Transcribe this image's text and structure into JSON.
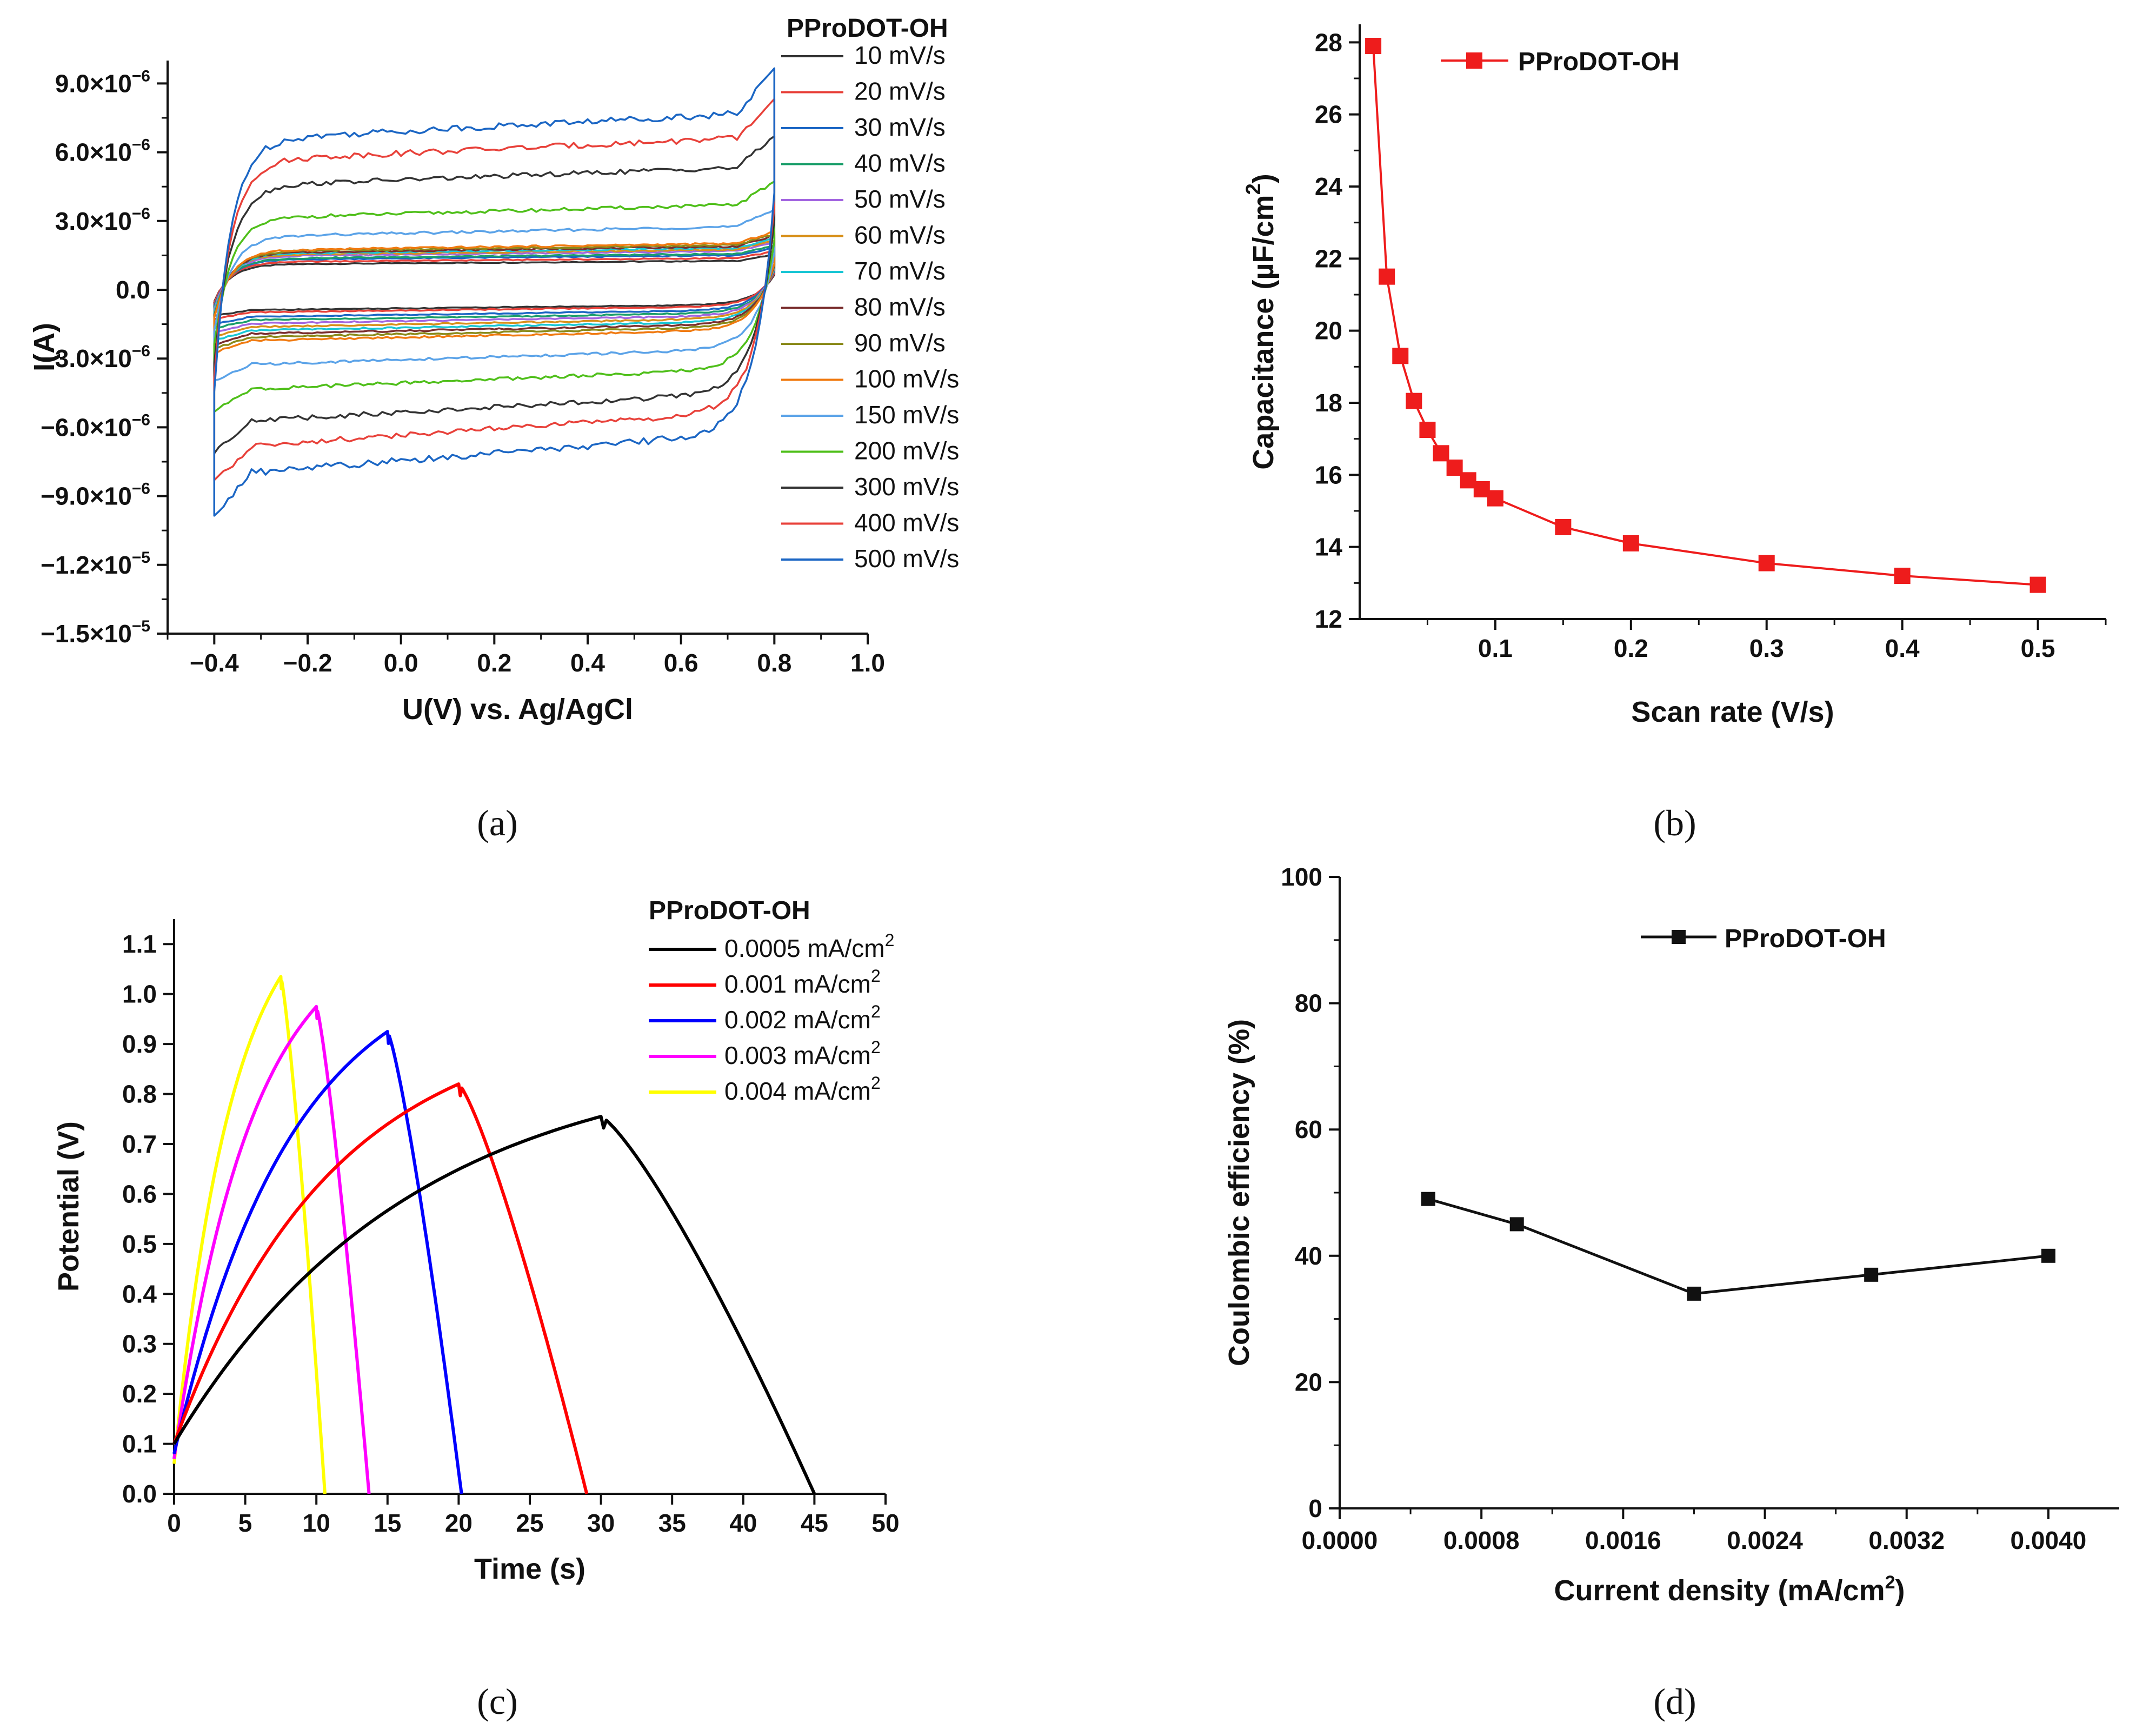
{
  "chart_data": [
    {
      "panel": "(a)",
      "type": "line",
      "xlabel": "U(V) vs. Ag/AgCl",
      "ylabel": "I(A)",
      "xlim": [
        -0.5,
        1.0
      ],
      "ylim": [
        -1.5e-05,
        1e-05
      ],
      "xticks": [
        -0.4,
        -0.2,
        0.0,
        0.2,
        0.4,
        0.6,
        0.8,
        1.0
      ],
      "xticklabels": [
        "−0.4",
        "−0.2",
        "0.0",
        "0.2",
        "0.4",
        "0.6",
        "0.8",
        "1.0"
      ],
      "yticks": [
        9e-06,
        6e-06,
        3e-06,
        0,
        -3e-06,
        -6e-06,
        -9e-06,
        -1.2e-05,
        -1.5e-05
      ],
      "yticklabels": [
        {
          "m": "9.0×10",
          "e": "−6"
        },
        {
          "m": "6.0×10",
          "e": "−6"
        },
        {
          "m": "3.0×10",
          "e": "−6"
        },
        {
          "m": "0.0",
          "e": ""
        },
        {
          "m": "−3.0×10",
          "e": "−6"
        },
        {
          "m": "−6.0×10",
          "e": "−6"
        },
        {
          "m": "−9.0×10",
          "e": "−6"
        },
        {
          "m": "−1.2×10",
          "e": "−5"
        },
        {
          "m": "−1.5×10",
          "e": "−5"
        }
      ],
      "legend_title": "PProDOT-OH",
      "legend_loc": "right",
      "series": [
        {
          "name": "10 mV/s",
          "color": "#333333",
          "upper": 1.1e-06,
          "lower": -9e-07
        },
        {
          "name": "20 mV/s",
          "color": "#e8413a",
          "upper": 1.2e-06,
          "lower": -1e-06
        },
        {
          "name": "30 mV/s",
          "color": "#1b66c4",
          "upper": 1.3e-06,
          "lower": -1.2e-06
        },
        {
          "name": "40 mV/s",
          "color": "#1a9e6a",
          "upper": 1.35e-06,
          "lower": -1.35e-06
        },
        {
          "name": "50 mV/s",
          "color": "#a365e0",
          "upper": 1.45e-06,
          "lower": -1.5e-06
        },
        {
          "name": "60 mV/s",
          "color": "#d8901a",
          "upper": 1.5e-06,
          "lower": -1.65e-06
        },
        {
          "name": "70 mV/s",
          "color": "#19c6d4",
          "upper": 1.55e-06,
          "lower": -1.8e-06
        },
        {
          "name": "80 mV/s",
          "color": "#7a2e2e",
          "upper": 1.6e-06,
          "lower": -1.95e-06
        },
        {
          "name": "90 mV/s",
          "color": "#8a8a1a",
          "upper": 1.65e-06,
          "lower": -2.1e-06
        },
        {
          "name": "100 mV/s",
          "color": "#f07a10",
          "upper": 1.7e-06,
          "lower": -2.25e-06
        },
        {
          "name": "150 mV/s",
          "color": "#5ba3e8",
          "upper": 2.3e-06,
          "lower": -3.3e-06
        },
        {
          "name": "200 mV/s",
          "color": "#4fbf1a",
          "upper": 3.1e-06,
          "lower": -4.4e-06
        },
        {
          "name": "300 mV/s",
          "color": "#333333",
          "upper": 4.5e-06,
          "lower": -5.8e-06
        },
        {
          "name": "400 mV/s",
          "color": "#e8413a",
          "upper": 5.6e-06,
          "lower": -6.9e-06
        },
        {
          "name": "500 mV/s",
          "color": "#1b66c4",
          "upper": 6.5e-06,
          "lower": -8.1e-06
        }
      ]
    },
    {
      "panel": "(b)",
      "type": "line",
      "xlabel": "Scan rate (V/s)",
      "ylabel": "Capacitance (µF/cm²)",
      "ylabel_main": "Capacitance (µF/cm",
      "ylabel_sup": "2",
      "ylabel_end": ")",
      "xlim": [
        0.0,
        0.55
      ],
      "ylim": [
        12,
        28.5
      ],
      "xticks": [
        0.1,
        0.2,
        0.3,
        0.4,
        0.5
      ],
      "xticklabels": [
        "0.1",
        "0.2",
        "0.3",
        "0.4",
        "0.5"
      ],
      "yticks": [
        12,
        14,
        16,
        18,
        20,
        22,
        24,
        26,
        28
      ],
      "yticklabels": [
        "12",
        "14",
        "16",
        "18",
        "20",
        "22",
        "24",
        "26",
        "28"
      ],
      "legend_loc": "top-left",
      "series": [
        {
          "name": "PProDOT-OH",
          "color": "#ee1c1c",
          "x": [
            0.01,
            0.02,
            0.03,
            0.04,
            0.05,
            0.06,
            0.07,
            0.08,
            0.09,
            0.1,
            0.15,
            0.2,
            0.3,
            0.4,
            0.5
          ],
          "y": [
            27.9,
            21.5,
            19.3,
            18.05,
            17.25,
            16.6,
            16.2,
            15.85,
            15.6,
            15.35,
            14.55,
            14.1,
            13.55,
            13.2,
            12.95
          ]
        }
      ]
    },
    {
      "panel": "(c)",
      "type": "line",
      "xlabel": "Time (s)",
      "ylabel": "Potential (V)",
      "xlim": [
        0,
        50
      ],
      "ylim": [
        0,
        1.15
      ],
      "xticks": [
        0,
        5,
        10,
        15,
        20,
        25,
        30,
        35,
        40,
        45,
        50
      ],
      "xticklabels": [
        "0",
        "5",
        "10",
        "15",
        "20",
        "25",
        "30",
        "35",
        "40",
        "45",
        "50"
      ],
      "yticks": [
        0.0,
        0.1,
        0.2,
        0.3,
        0.4,
        0.5,
        0.6,
        0.7,
        0.8,
        0.9,
        1.0,
        1.1
      ],
      "yticklabels": [
        "0.0",
        "0.1",
        "0.2",
        "0.3",
        "0.4",
        "0.5",
        "0.6",
        "0.7",
        "0.8",
        "0.9",
        "1.0",
        "1.1"
      ],
      "legend_title": "PProDOT-OH",
      "legend_loc": "top-right",
      "series": [
        {
          "name": "0.0005 mA/cm",
          "sup": "2",
          "color": "#000000",
          "t_peak": 30.0,
          "v_peak": 0.755,
          "t_end": 45.0,
          "v0": 0.1
        },
        {
          "name": "0.001 mA/cm",
          "sup": "2",
          "color": "#ff0000",
          "t_peak": 20.0,
          "v_peak": 0.82,
          "t_end": 29.0,
          "v0": 0.1
        },
        {
          "name": "0.002 mA/cm",
          "sup": "2",
          "color": "#0000ff",
          "t_peak": 15.0,
          "v_peak": 0.925,
          "t_end": 20.2,
          "v0": 0.08
        },
        {
          "name": "0.003 mA/cm",
          "sup": "2",
          "color": "#ff00ff",
          "t_peak": 10.0,
          "v_peak": 0.975,
          "t_end": 13.7,
          "v0": 0.07
        },
        {
          "name": "0.004 mA/cm",
          "sup": "2",
          "color": "#ffff00",
          "t_peak": 7.5,
          "v_peak": 1.035,
          "t_end": 10.6,
          "v0": 0.06
        }
      ]
    },
    {
      "panel": "(d)",
      "type": "line",
      "xlabel": "Current density (mA/cm²)",
      "xlabel_main": "Current density (mA/cm",
      "xlabel_sup": "2",
      "xlabel_end": ")",
      "ylabel": "Coulombic efficiency (%)",
      "xlim": [
        0.0,
        0.0044
      ],
      "ylim": [
        0,
        100
      ],
      "xticks": [
        0.0,
        0.0008,
        0.0016,
        0.0024,
        0.0032,
        0.004
      ],
      "xticklabels": [
        "0.0000",
        "0.0008",
        "0.0016",
        "0.0024",
        "0.0032",
        "0.0040"
      ],
      "yticks": [
        0,
        20,
        40,
        60,
        80,
        100
      ],
      "yticklabels": [
        "0",
        "20",
        "40",
        "60",
        "80",
        "100"
      ],
      "legend_loc": "top-center",
      "series": [
        {
          "name": "PProDOT-OH",
          "color": "#111111",
          "x": [
            0.0005,
            0.001,
            0.002,
            0.003,
            0.004
          ],
          "y": [
            49,
            45,
            34,
            37,
            40
          ]
        }
      ]
    }
  ]
}
